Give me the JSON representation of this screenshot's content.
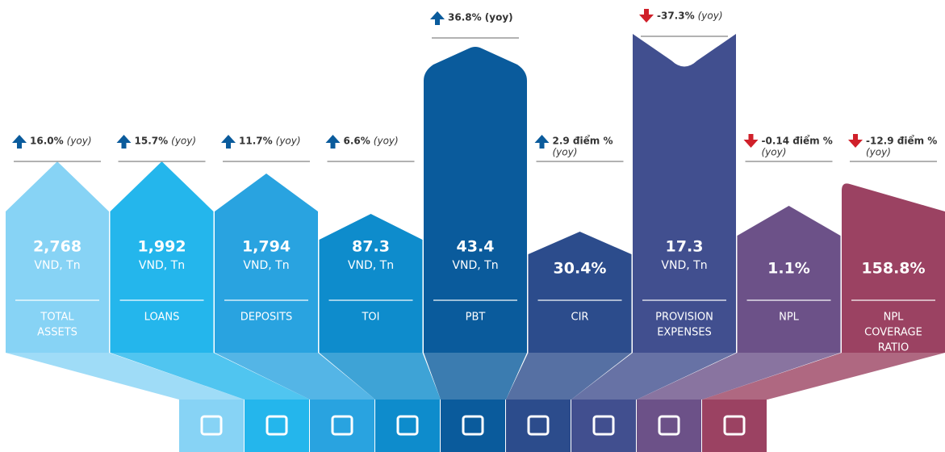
{
  "items": [
    {
      "change": "16.0%",
      "note": "(yoy)",
      "trend": "up",
      "value": "2,768",
      "unit": "VND, Tn",
      "label": [
        "TOTAL",
        "ASSETS"
      ]
    },
    {
      "change": "15.7%",
      "note": "(yoy)",
      "trend": "up",
      "value": "1,992",
      "unit": "VND, Tn",
      "label": [
        "LOANS"
      ]
    },
    {
      "change": "11.7%",
      "note": "(yoy)",
      "trend": "up",
      "value": "1,794",
      "unit": "VND, Tn",
      "label": [
        "DEPOSITS"
      ]
    },
    {
      "change": "6.6%",
      "note": "(yoy)",
      "trend": "up",
      "value": "87.3",
      "unit": "VND, Tn",
      "label": [
        "TOI"
      ]
    },
    {
      "change": "36.8% (yoy)",
      "trend": "up",
      "value": "43.4",
      "unit": "VND, Tn",
      "label": [
        "PBT"
      ]
    },
    {
      "change": "2.9 điểm %",
      "note": "(yoy)",
      "trend": "up",
      "value": "30.4%",
      "label": [
        "CIR"
      ]
    },
    {
      "change": "-37.3%",
      "note": "(yoy)",
      "trend": "down",
      "value": "17.3",
      "unit": "VND, Tn",
      "label": [
        "PROVISION",
        "EXPENSES"
      ]
    },
    {
      "change": "-0.14 điểm %",
      "note": "(yoy)",
      "trend": "down",
      "value": "1.1%",
      "label": [
        "NPL"
      ]
    },
    {
      "change": "-12.9 điểm %",
      "note": "(yoy)",
      "trend": "down",
      "value": "158.8%",
      "label": [
        "NPL",
        "COVERAGE",
        "RATIO"
      ]
    }
  ]
}
